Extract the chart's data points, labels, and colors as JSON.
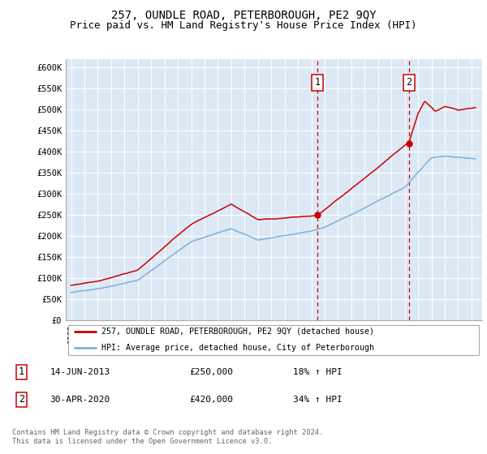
{
  "title": "257, OUNDLE ROAD, PETERBOROUGH, PE2 9QY",
  "subtitle": "Price paid vs. HM Land Registry's House Price Index (HPI)",
  "ylim": [
    0,
    620000
  ],
  "yticks": [
    0,
    50000,
    100000,
    150000,
    200000,
    250000,
    300000,
    350000,
    400000,
    450000,
    500000,
    550000,
    600000
  ],
  "ytick_labels": [
    "£0",
    "£50K",
    "£100K",
    "£150K",
    "£200K",
    "£250K",
    "£300K",
    "£350K",
    "£400K",
    "£450K",
    "£500K",
    "£550K",
    "£600K"
  ],
  "xlim_start": 1994.6,
  "xlim_end": 2025.8,
  "sale1_x": 2013.45,
  "sale1_y": 250000,
  "sale2_x": 2020.33,
  "sale2_y": 420000,
  "line_color_red": "#cc0000",
  "line_color_blue": "#7fb0d8",
  "background_color": "#dce9f5",
  "legend_entry1": "257, OUNDLE ROAD, PETERBOROUGH, PE2 9QY (detached house)",
  "legend_entry2": "HPI: Average price, detached house, City of Peterborough",
  "annotation1_date": "14-JUN-2013",
  "annotation1_price": "£250,000",
  "annotation1_hpi": "18% ↑ HPI",
  "annotation2_date": "30-APR-2020",
  "annotation2_price": "£420,000",
  "annotation2_hpi": "34% ↑ HPI",
  "footer": "Contains HM Land Registry data © Crown copyright and database right 2024.\nThis data is licensed under the Open Government Licence v3.0.",
  "title_fontsize": 10,
  "subtitle_fontsize": 9
}
